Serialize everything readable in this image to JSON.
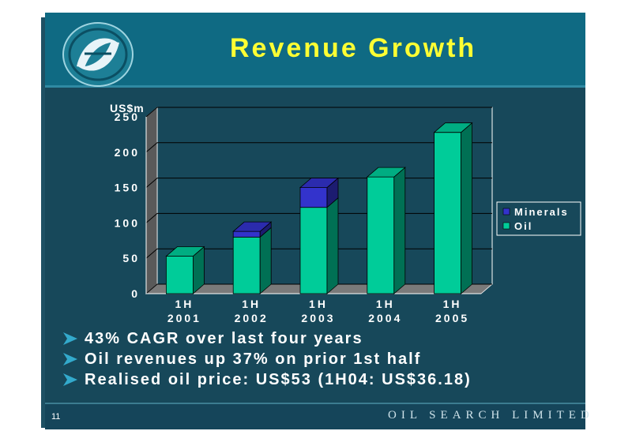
{
  "slide": {
    "title": "Revenue Growth",
    "page_number": "11",
    "company": "OIL SEARCH LIMITED",
    "bullets": [
      "43% CAGR over last four years",
      "Oil revenues up 37% on prior 1st half",
      "Realised oil price: US$53 (1H04: US$36.18)"
    ]
  },
  "colors": {
    "background": "#17485a",
    "header": "#0f6a83",
    "title": "#ffff33",
    "oil": "#00cc99",
    "minerals": "#3333cc",
    "bullet_arrow": "#33aacc"
  },
  "chart_data": {
    "type": "bar",
    "stacked": true,
    "three_d": true,
    "ylabel": "US$m",
    "ylim": [
      0,
      250
    ],
    "yticks": [
      "0",
      "50",
      "100",
      "150",
      "200",
      "250"
    ],
    "categories": [
      [
        "1H",
        "2001"
      ],
      [
        "1H",
        "2002"
      ],
      [
        "1H",
        "2003"
      ],
      [
        "1H",
        "2004"
      ],
      [
        "1H",
        "2005"
      ]
    ],
    "series": [
      {
        "name": "Oil",
        "values": [
          53,
          80,
          122,
          165,
          228
        ],
        "color": "#00cc99"
      },
      {
        "name": "Minerals",
        "values": [
          0,
          8,
          28,
          0,
          0
        ],
        "color": "#3333cc"
      }
    ],
    "legend": [
      "Minerals",
      "Oil"
    ],
    "legend_position": "right",
    "grid": true
  }
}
